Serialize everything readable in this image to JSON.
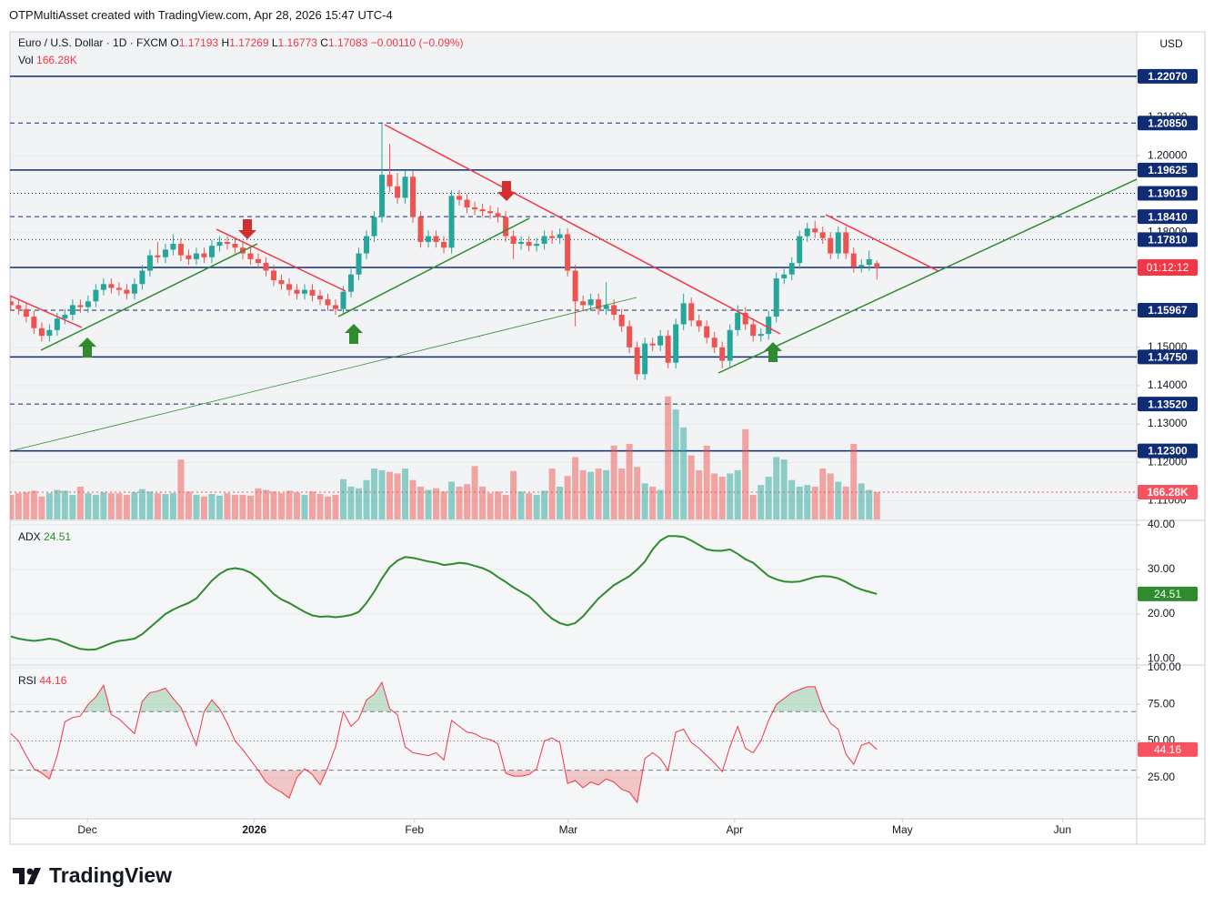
{
  "header": {
    "credit": "OTPMultiAsset created with TradingView.com, Apr 28, 2026 15:47 UTC-4",
    "currency": "USD"
  },
  "footer": {
    "brand": "TradingView"
  },
  "chart_data": [
    {
      "type": "candlestick",
      "title": "Euro / U.S. Dollar · 1D · FXCM",
      "legend": [
        {
          "key": "O",
          "value": "1.17193"
        },
        {
          "key": "H",
          "value": "1.17269"
        },
        {
          "key": "L",
          "value": "1.16773"
        },
        {
          "key": "C",
          "value": "1.17083"
        }
      ],
      "change": "−0.00110 (−0.09%)",
      "countdown": "01:12:12",
      "up_color": "#26a69a",
      "down_color": "#ef5350",
      "level_color": "#0f2c74",
      "countdown_color": "#f23645",
      "ylim": [
        1.1051,
        1.2323
      ],
      "yticks": [
        {
          "value": 1.11,
          "label": "1.11000"
        },
        {
          "value": 1.12,
          "label": "1.12000"
        },
        {
          "value": 1.13,
          "label": "1.13000"
        },
        {
          "value": 1.14,
          "label": "1.14000"
        },
        {
          "value": 1.15,
          "label": "1.15000"
        },
        {
          "value": 1.18,
          "label": "1.18000"
        },
        {
          "value": 1.2,
          "label": "1.20000"
        },
        {
          "value": 1.21,
          "label": "1.21000"
        }
      ],
      "xlim": [
        -0.1,
        145.6
      ],
      "xticks": [
        {
          "value": 9.9,
          "label": "Dec"
        },
        {
          "value": 31.5,
          "label": "2026"
        },
        {
          "value": 52.2,
          "label": "Feb"
        },
        {
          "value": 72.1,
          "label": "Mar"
        },
        {
          "value": 93.6,
          "label": "Apr"
        },
        {
          "value": 115.3,
          "label": "May"
        },
        {
          "value": 136,
          "label": "Jun"
        }
      ],
      "levels": [
        {
          "value": 1.2207,
          "label": "1.22070",
          "style": "solid"
        },
        {
          "value": 1.2085,
          "label": "1.20850",
          "style": "dashed"
        },
        {
          "value": 1.19625,
          "label": "1.19625",
          "style": "solid"
        },
        {
          "value": 1.19019,
          "label": "1.19019",
          "style": "dotted"
        },
        {
          "value": 1.1841,
          "label": "1.18410",
          "style": "dashed"
        },
        {
          "value": 1.1781,
          "label": "1.17810",
          "style": "dotted"
        },
        {
          "value": 1.15967,
          "label": "1.15967",
          "style": "dashed"
        },
        {
          "value": 1.1475,
          "label": "1.14750",
          "style": "solid"
        },
        {
          "value": 1.1352,
          "label": "1.13520",
          "style": "dashed"
        },
        {
          "value": 1.123,
          "label": "1.12300",
          "style": "solid"
        }
      ],
      "ohlc": [
        [
          1.162,
          1.1635,
          1.1595,
          1.161
        ],
        [
          1.161,
          1.1625,
          1.1585,
          1.16
        ],
        [
          1.16,
          1.1615,
          1.1565,
          1.158
        ],
        [
          1.158,
          1.1595,
          1.1535,
          1.155
        ],
        [
          1.155,
          1.1565,
          1.1515,
          1.153
        ],
        [
          1.153,
          1.156,
          1.1515,
          1.1545
        ],
        [
          1.1545,
          1.159,
          1.153,
          1.1575
        ],
        [
          1.1575,
          1.16,
          1.156,
          1.1585
        ],
        [
          1.1585,
          1.1625,
          1.157,
          1.161
        ],
        [
          1.161,
          1.1625,
          1.159,
          1.1605
        ],
        [
          1.1605,
          1.1635,
          1.159,
          1.162
        ],
        [
          1.162,
          1.1665,
          1.1605,
          1.165
        ],
        [
          1.165,
          1.168,
          1.1635,
          1.1665
        ],
        [
          1.1665,
          1.168,
          1.164,
          1.1655
        ],
        [
          1.1655,
          1.167,
          1.1635,
          1.165
        ],
        [
          1.165,
          1.1665,
          1.1625,
          1.164
        ],
        [
          1.164,
          1.168,
          1.1625,
          1.1665
        ],
        [
          1.1665,
          1.1715,
          1.165,
          1.17
        ],
        [
          1.17,
          1.1755,
          1.1685,
          1.174
        ],
        [
          1.174,
          1.1775,
          1.172,
          1.1735
        ],
        [
          1.1735,
          1.177,
          1.172,
          1.1755
        ],
        [
          1.1755,
          1.1795,
          1.174,
          1.177
        ],
        [
          1.177,
          1.1785,
          1.1725,
          1.174
        ],
        [
          1.174,
          1.1755,
          1.1715,
          1.173
        ],
        [
          1.173,
          1.176,
          1.1715,
          1.1745
        ],
        [
          1.1745,
          1.176,
          1.172,
          1.1735
        ],
        [
          1.1735,
          1.178,
          1.172,
          1.1765
        ],
        [
          1.1765,
          1.179,
          1.175,
          1.1775
        ],
        [
          1.1775,
          1.179,
          1.1755,
          1.177
        ],
        [
          1.177,
          1.1785,
          1.1745,
          1.176
        ],
        [
          1.176,
          1.1775,
          1.173,
          1.1745
        ],
        [
          1.1745,
          1.176,
          1.1715,
          1.173
        ],
        [
          1.173,
          1.1745,
          1.1705,
          1.172
        ],
        [
          1.172,
          1.1735,
          1.1685,
          1.17
        ],
        [
          1.17,
          1.1715,
          1.166,
          1.1675
        ],
        [
          1.1675,
          1.169,
          1.165,
          1.1665
        ],
        [
          1.1665,
          1.168,
          1.1635,
          1.165
        ],
        [
          1.165,
          1.1665,
          1.1625,
          1.164
        ],
        [
          1.164,
          1.1665,
          1.1625,
          1.165
        ],
        [
          1.165,
          1.1665,
          1.162,
          1.1635
        ],
        [
          1.1635,
          1.165,
          1.161,
          1.1625
        ],
        [
          1.1625,
          1.164,
          1.1595,
          1.161
        ],
        [
          1.161,
          1.1625,
          1.1585,
          1.16
        ],
        [
          1.16,
          1.166,
          1.1585,
          1.1645
        ],
        [
          1.1645,
          1.1705,
          1.163,
          1.169
        ],
        [
          1.169,
          1.176,
          1.1675,
          1.1745
        ],
        [
          1.1745,
          1.1805,
          1.173,
          1.179
        ],
        [
          1.179,
          1.1855,
          1.1775,
          1.184
        ],
        [
          1.184,
          1.2085,
          1.1825,
          1.195
        ],
        [
          1.195,
          1.203,
          1.1905,
          1.192
        ],
        [
          1.192,
          1.1955,
          1.1875,
          1.189
        ],
        [
          1.189,
          1.196,
          1.1875,
          1.1945
        ],
        [
          1.1945,
          1.196,
          1.1825,
          1.184
        ],
        [
          1.184,
          1.1855,
          1.176,
          1.1775
        ],
        [
          1.1775,
          1.1805,
          1.176,
          1.179
        ],
        [
          1.179,
          1.1805,
          1.176,
          1.1775
        ],
        [
          1.1775,
          1.179,
          1.1745,
          1.176
        ],
        [
          1.176,
          1.191,
          1.1745,
          1.1895
        ],
        [
          1.1895,
          1.191,
          1.187,
          1.1885
        ],
        [
          1.1885,
          1.19,
          1.185,
          1.1865
        ],
        [
          1.1865,
          1.188,
          1.1845,
          1.186
        ],
        [
          1.186,
          1.1875,
          1.184,
          1.1855
        ],
        [
          1.1855,
          1.187,
          1.1835,
          1.185
        ],
        [
          1.185,
          1.1865,
          1.1825,
          1.184
        ],
        [
          1.184,
          1.1855,
          1.1775,
          1.179
        ],
        [
          1.179,
          1.1805,
          1.173,
          1.177
        ],
        [
          1.177,
          1.179,
          1.1755,
          1.1775
        ],
        [
          1.1775,
          1.179,
          1.175,
          1.1765
        ],
        [
          1.1765,
          1.1785,
          1.175,
          1.177
        ],
        [
          1.177,
          1.1805,
          1.1755,
          1.179
        ],
        [
          1.179,
          1.1805,
          1.177,
          1.1785
        ],
        [
          1.1785,
          1.181,
          1.177,
          1.1795
        ],
        [
          1.1795,
          1.181,
          1.1685,
          1.17
        ],
        [
          1.17,
          1.1715,
          1.1555,
          1.162
        ],
        [
          1.162,
          1.1635,
          1.1595,
          1.161
        ],
        [
          1.161,
          1.164,
          1.1595,
          1.1625
        ],
        [
          1.1625,
          1.164,
          1.1585,
          1.16
        ],
        [
          1.16,
          1.167,
          1.1585,
          1.161
        ],
        [
          1.161,
          1.1625,
          1.157,
          1.1585
        ],
        [
          1.1585,
          1.16,
          1.154,
          1.1555
        ],
        [
          1.1555,
          1.157,
          1.1485,
          1.15
        ],
        [
          1.15,
          1.1515,
          1.1415,
          1.143
        ],
        [
          1.143,
          1.1525,
          1.1415,
          1.151
        ],
        [
          1.151,
          1.1525,
          1.149,
          1.1505
        ],
        [
          1.1505,
          1.1545,
          1.149,
          1.153
        ],
        [
          1.153,
          1.1545,
          1.1445,
          1.146
        ],
        [
          1.146,
          1.1575,
          1.1445,
          1.156
        ],
        [
          1.156,
          1.164,
          1.1545,
          1.1615
        ],
        [
          1.1615,
          1.163,
          1.1555,
          1.157
        ],
        [
          1.157,
          1.1585,
          1.154,
          1.1555
        ],
        [
          1.1555,
          1.157,
          1.151,
          1.1525
        ],
        [
          1.1525,
          1.154,
          1.1485,
          1.15
        ],
        [
          1.15,
          1.1515,
          1.1445,
          1.1465
        ],
        [
          1.1465,
          1.156,
          1.145,
          1.1545
        ],
        [
          1.1545,
          1.161,
          1.153,
          1.159
        ],
        [
          1.159,
          1.1605,
          1.1545,
          1.156
        ],
        [
          1.156,
          1.1575,
          1.1515,
          1.153
        ],
        [
          1.153,
          1.155,
          1.1515,
          1.1535
        ],
        [
          1.1535,
          1.1595,
          1.152,
          1.158
        ],
        [
          1.158,
          1.1695,
          1.1565,
          1.168
        ],
        [
          1.168,
          1.1705,
          1.1665,
          1.169
        ],
        [
          1.169,
          1.1735,
          1.1675,
          1.172
        ],
        [
          1.172,
          1.1805,
          1.1705,
          1.179
        ],
        [
          1.179,
          1.1825,
          1.1775,
          1.181
        ],
        [
          1.181,
          1.183,
          1.1785,
          1.18
        ],
        [
          1.18,
          1.1815,
          1.177,
          1.1785
        ],
        [
          1.1785,
          1.18,
          1.173,
          1.1745
        ],
        [
          1.1745,
          1.1815,
          1.173,
          1.18
        ],
        [
          1.18,
          1.1815,
          1.173,
          1.1745
        ],
        [
          1.1745,
          1.176,
          1.1695,
          1.171
        ],
        [
          1.171,
          1.173,
          1.1695,
          1.1715
        ],
        [
          1.1715,
          1.1753,
          1.17,
          1.173
        ],
        [
          1.17193,
          1.17269,
          1.16773,
          1.17083
        ]
      ]
    },
    {
      "type": "volume",
      "name": "Vol",
      "value_text": "166.28K",
      "ylim": [
        0,
        2970
      ],
      "label_color": "#f7525f",
      "values": [
        150,
        160,
        165,
        175,
        140,
        160,
        180,
        175,
        150,
        200,
        160,
        150,
        165,
        160,
        160,
        150,
        165,
        185,
        170,
        160,
        155,
        160,
        365,
        170,
        150,
        140,
        155,
        145,
        160,
        150,
        150,
        145,
        190,
        180,
        170,
        160,
        175,
        165,
        150,
        170,
        155,
        140,
        150,
        245,
        200,
        190,
        240,
        310,
        300,
        290,
        280,
        310,
        240,
        200,
        180,
        190,
        170,
        230,
        200,
        215,
        325,
        200,
        160,
        170,
        150,
        295,
        170,
        160,
        150,
        175,
        310,
        200,
        265,
        380,
        300,
        290,
        310,
        300,
        450,
        310,
        460,
        320,
        220,
        200,
        180,
        750,
        670,
        560,
        390,
        300,
        450,
        280,
        260,
        280,
        300,
        550,
        150,
        210,
        260,
        380,
        365,
        240,
        200,
        210,
        200,
        310,
        280,
        230,
        200,
        460,
        220,
        180,
        166.28
      ]
    },
    {
      "type": "line",
      "name": "ADX",
      "value_text": "24.51",
      "color": "#2e8b2e",
      "ylim": [
        8.8,
        40.8
      ],
      "yticks": [
        {
          "value": 10,
          "label": "10.00"
        },
        {
          "value": 20,
          "label": "20.00"
        },
        {
          "value": 30,
          "label": "30.00"
        },
        {
          "value": 40,
          "label": "40.00"
        }
      ],
      "values": [
        15,
        14.5,
        14.2,
        14,
        14.2,
        14.5,
        14.2,
        13.5,
        12.8,
        12.2,
        12,
        12.1,
        12.8,
        13.5,
        14,
        14.2,
        14.5,
        15.5,
        17,
        18.5,
        20,
        21,
        21.8,
        22.5,
        23.5,
        25.5,
        27.5,
        29,
        30,
        30.3,
        30,
        29.3,
        28,
        26.3,
        24.5,
        23.3,
        22.5,
        21.5,
        20.5,
        19.7,
        19.4,
        19.5,
        19.3,
        19.5,
        19.8,
        20.5,
        22.5,
        25,
        28,
        30.5,
        32,
        32.8,
        32.6,
        32.2,
        31.8,
        31.5,
        31,
        31.2,
        31.5,
        31.3,
        30.8,
        30.3,
        29.5,
        28.3,
        27.2,
        26,
        25,
        24,
        22.5,
        20.5,
        19,
        18,
        17.5,
        18,
        19.5,
        21.5,
        23.5,
        25,
        26.5,
        27.5,
        28.5,
        30,
        31.8,
        34.5,
        36.5,
        37.5,
        37.5,
        37.3,
        36.5,
        35.5,
        34.5,
        34.2,
        34.2,
        34.5,
        33.5,
        32.3,
        31.5,
        30,
        28.5,
        27.8,
        27.3,
        27.2,
        27.3,
        27.8,
        28.3,
        28.5,
        28.4,
        28,
        27.2,
        26.2,
        25.5,
        25,
        24.51
      ]
    },
    {
      "type": "line",
      "name": "RSI",
      "value_text": "44.16",
      "color": "#f23645",
      "label_color": "#f7525f",
      "ylim": [
        -3.1,
        101.2
      ],
      "yticks": [
        {
          "value": 25,
          "label": "25.00"
        },
        {
          "value": 50,
          "label": "50.00"
        },
        {
          "value": 75,
          "label": "75.00"
        },
        {
          "value": 100,
          "label": "100.00"
        }
      ],
      "bands": [
        70,
        50,
        30
      ],
      "overbought_fill": "#2e9b4e",
      "oversold_fill": "#e53935",
      "values": [
        55,
        50,
        40,
        31,
        28,
        24,
        40,
        63,
        66,
        67,
        75,
        80,
        88,
        68,
        65,
        60,
        55,
        77,
        83,
        84,
        86,
        79,
        73,
        60,
        47,
        70,
        78,
        72,
        62,
        50,
        44,
        37,
        30,
        22,
        18,
        15,
        11,
        25,
        31,
        27,
        20,
        32,
        46,
        70,
        60,
        65,
        78,
        82,
        90,
        72,
        68,
        46,
        42,
        41,
        40,
        42,
        37,
        64,
        60,
        56,
        55,
        52,
        51,
        48,
        28,
        26,
        26,
        27,
        31,
        50,
        52,
        49,
        21,
        23,
        18,
        22,
        20,
        24,
        22,
        17,
        15,
        8,
        38,
        42,
        38,
        30,
        56,
        58,
        49,
        45,
        40,
        35,
        29,
        46,
        60,
        45,
        42,
        50,
        64,
        75,
        79,
        83,
        85,
        87,
        87,
        72,
        62,
        58,
        41,
        34,
        47,
        49,
        44.16
      ]
    }
  ]
}
